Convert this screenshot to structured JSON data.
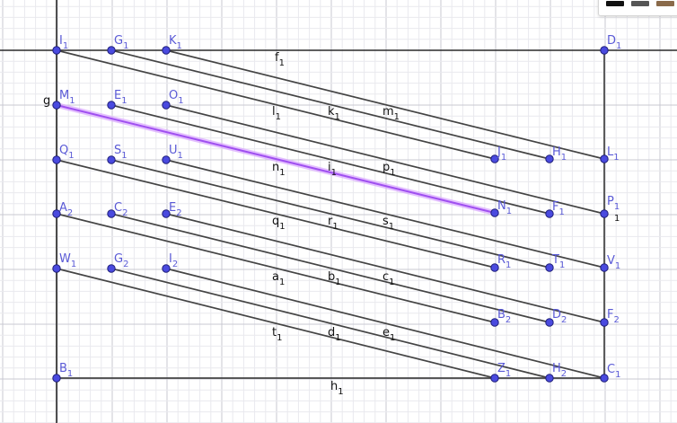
{
  "points": [
    {
      "id": "I1",
      "name": "I",
      "sub": "1"
    },
    {
      "id": "G1",
      "name": "G",
      "sub": "1"
    },
    {
      "id": "K1",
      "name": "K",
      "sub": "1"
    },
    {
      "id": "D1",
      "name": "D",
      "sub": "1"
    },
    {
      "id": "M1",
      "name": "M",
      "sub": "1"
    },
    {
      "id": "E1",
      "name": "E",
      "sub": "1"
    },
    {
      "id": "O1",
      "name": "O",
      "sub": "1"
    },
    {
      "id": "J1",
      "name": "J",
      "sub": "1"
    },
    {
      "id": "H1",
      "name": "H",
      "sub": "1"
    },
    {
      "id": "L1",
      "name": "L",
      "sub": "1"
    },
    {
      "id": "Q1",
      "name": "Q",
      "sub": "1"
    },
    {
      "id": "S1",
      "name": "S",
      "sub": "1"
    },
    {
      "id": "U1",
      "name": "U",
      "sub": "1"
    },
    {
      "id": "N1",
      "name": "N",
      "sub": "1"
    },
    {
      "id": "F1",
      "name": "F",
      "sub": "1"
    },
    {
      "id": "P1",
      "name": "P",
      "sub": "1"
    },
    {
      "id": "A2",
      "name": "A",
      "sub": "2"
    },
    {
      "id": "C2",
      "name": "C",
      "sub": "2"
    },
    {
      "id": "E2",
      "name": "E",
      "sub": "2"
    },
    {
      "id": "R1",
      "name": "R",
      "sub": "1"
    },
    {
      "id": "T1",
      "name": "T",
      "sub": "1"
    },
    {
      "id": "V1",
      "name": "V",
      "sub": "1"
    },
    {
      "id": "W1",
      "name": "W",
      "sub": "1"
    },
    {
      "id": "G2",
      "name": "G",
      "sub": "2"
    },
    {
      "id": "I2",
      "name": "I",
      "sub": "2"
    },
    {
      "id": "B2",
      "name": "B",
      "sub": "2"
    },
    {
      "id": "D2",
      "name": "D",
      "sub": "2"
    },
    {
      "id": "F2",
      "name": "F",
      "sub": "2"
    },
    {
      "id": "B1",
      "name": "B",
      "sub": "1"
    },
    {
      "id": "Z1",
      "name": "Z",
      "sub": "1"
    },
    {
      "id": "H2",
      "name": "H",
      "sub": "2"
    },
    {
      "id": "C1",
      "name": "C",
      "sub": "1"
    }
  ],
  "segments": [
    {
      "name": "f",
      "sub": "1",
      "from": "K1",
      "to": "L1"
    },
    {
      "name": "k",
      "sub": "1",
      "from": "G1",
      "to": "H1"
    },
    {
      "name": "l",
      "sub": "1",
      "from": "I1",
      "to": "J1"
    },
    {
      "name": "m",
      "sub": "1",
      "from": "O1",
      "to": "P1"
    },
    {
      "name": "p",
      "sub": "1",
      "from": "E1",
      "to": "F1"
    },
    {
      "name": "n",
      "sub": "1",
      "from": "M1",
      "to": "N1",
      "highlight": true
    },
    {
      "name": "i",
      "sub": "1",
      "from": "U1",
      "to": "V1"
    },
    {
      "name": "s",
      "sub": "1",
      "from": "S1",
      "to": "T1"
    },
    {
      "name": "q",
      "sub": "1",
      "from": "Q1",
      "to": "R1"
    },
    {
      "name": "r",
      "sub": "1",
      "from": "E2",
      "to": "F2"
    },
    {
      "name": "c",
      "sub": "1",
      "from": "C2",
      "to": "D2"
    },
    {
      "name": "a",
      "sub": "1",
      "from": "A2",
      "to": "B2"
    },
    {
      "name": "b",
      "sub": "1",
      "from": "I2",
      "to": "C1"
    },
    {
      "name": "e",
      "sub": "1",
      "from": "G2",
      "to": "H2"
    },
    {
      "name": "t",
      "sub": "1",
      "from": "W1",
      "to": "Z1"
    },
    {
      "name": "d",
      "sub": "1",
      "from": "",
      "to": ""
    },
    {
      "name": "h",
      "sub": "1",
      "from": "B1",
      "to": "C1"
    },
    {
      "name": "g",
      "sub": "",
      "from": "I1",
      "to": "B1"
    },
    {
      "name": "",
      "sub": "1",
      "from": "D1",
      "to": "C1"
    }
  ],
  "colors": {
    "point": "#4a4adf",
    "segment": "#444444",
    "highlight": "#a050f0",
    "toolbar_swatches": [
      "#111111",
      "#555555",
      "#8a6a4a"
    ]
  }
}
